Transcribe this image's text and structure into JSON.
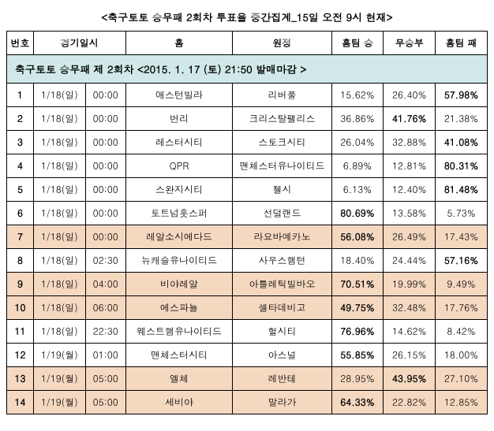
{
  "title": "<축구토토 승무패 2회차 투표율 중간집계_15일 오전 9시 현재>",
  "banner": "축구토토 승무패 제 2회차 <2015. 1. 17 (토) 21:50 발매마감 >",
  "headers": {
    "no": "번호",
    "datetime": "경기일시",
    "home": "홈",
    "away": "원정",
    "win": "홈팀 승",
    "draw": "무승부",
    "lose": "홈팀 패"
  },
  "rows": [
    {
      "no": "1",
      "date": "1/18(일)",
      "time": "00:00",
      "home": "애스턴빌라",
      "away": "리버풀",
      "win": "15.62%",
      "draw": "26.40%",
      "lose": "57.98%",
      "bold": "lose",
      "hl": false
    },
    {
      "no": "2",
      "date": "1/18(일)",
      "time": "00:00",
      "home": "번리",
      "away": "크리스탈팰리스",
      "win": "36.86%",
      "draw": "41.76%",
      "lose": "21.38%",
      "bold": "draw",
      "hl": false
    },
    {
      "no": "3",
      "date": "1/18(일)",
      "time": "00:00",
      "home": "레스터시티",
      "away": "스토크시티",
      "win": "26.04%",
      "draw": "32.88%",
      "lose": "41.08%",
      "bold": "lose",
      "hl": false
    },
    {
      "no": "4",
      "date": "1/18(일)",
      "time": "00:00",
      "home": "QPR",
      "away": "맨체스터유나이티드",
      "win": "6.89%",
      "draw": "12.81%",
      "lose": "80.31%",
      "bold": "lose",
      "hl": false
    },
    {
      "no": "5",
      "date": "1/18(일)",
      "time": "00:00",
      "home": "스완지시티",
      "away": "첼시",
      "win": "6.13%",
      "draw": "12.40%",
      "lose": "81.48%",
      "bold": "lose",
      "hl": false
    },
    {
      "no": "6",
      "date": "1/18(일)",
      "time": "00:00",
      "home": "토트넘홋스퍼",
      "away": "선덜랜드",
      "win": "80.69%",
      "draw": "13.58%",
      "lose": "5.73%",
      "bold": "win",
      "hl": false
    },
    {
      "no": "7",
      "date": "1/18(일)",
      "time": "00:00",
      "home": "레알소시에다드",
      "away": "라요바예카노",
      "win": "56.08%",
      "draw": "26.49%",
      "lose": "17.43%",
      "bold": "win",
      "hl": true
    },
    {
      "no": "8",
      "date": "1/18(일)",
      "time": "02:30",
      "home": "뉴캐슬유나이티드",
      "away": "사우스햄턴",
      "win": "18.40%",
      "draw": "24.44%",
      "lose": "57.16%",
      "bold": "lose",
      "hl": false
    },
    {
      "no": "9",
      "date": "1/18(일)",
      "time": "04:00",
      "home": "비야레알",
      "away": "아틀레틱빌바오",
      "win": "70.51%",
      "draw": "19.99%",
      "lose": "9.49%",
      "bold": "win",
      "hl": true
    },
    {
      "no": "10",
      "date": "1/18(일)",
      "time": "06:00",
      "home": "에스파뇰",
      "away": "셀타데비고",
      "win": "49.75%",
      "draw": "32.48%",
      "lose": "17.76%",
      "bold": "win",
      "hl": true
    },
    {
      "no": "11",
      "date": "1/18(일)",
      "time": "22:30",
      "home": "웨스트햄유나이티드",
      "away": "헐시티",
      "win": "76.96%",
      "draw": "14.62%",
      "lose": "8.42%",
      "bold": "win",
      "hl": false
    },
    {
      "no": "12",
      "date": "1/19(월)",
      "time": "01:00",
      "home": "맨체스터시티",
      "away": "아스널",
      "win": "55.85%",
      "draw": "26.15%",
      "lose": "18.00%",
      "bold": "win",
      "hl": false
    },
    {
      "no": "13",
      "date": "1/19(월)",
      "time": "05:00",
      "home": "엘체",
      "away": "레반테",
      "win": "28.95%",
      "draw": "43.95%",
      "lose": "27.10%",
      "bold": "draw",
      "hl": true
    },
    {
      "no": "14",
      "date": "1/19(월)",
      "time": "05:00",
      "home": "세비야",
      "away": "말라가",
      "win": "64.33%",
      "draw": "22.82%",
      "lose": "12.85%",
      "bold": "win",
      "hl": true
    }
  ]
}
